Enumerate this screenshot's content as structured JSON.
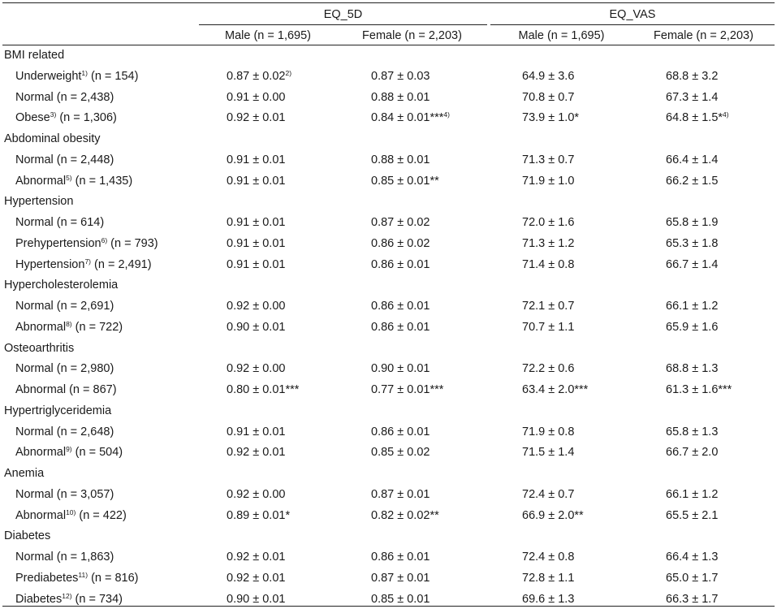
{
  "header": {
    "groups": [
      "EQ_5D",
      "EQ_VAS"
    ],
    "columns": [
      "Male (n = 1,695)",
      "Female (n = 2,203)",
      "Male (n = 1,695)",
      "Female (n = 2,203)"
    ]
  },
  "rows": [
    {
      "label": "BMI related",
      "sup": "",
      "n": "",
      "category": true,
      "values": [
        "",
        "",
        "",
        ""
      ],
      "sups": [
        "",
        "",
        "",
        ""
      ]
    },
    {
      "label": "Underweight",
      "sup": "1)",
      "n": " (n = 154)",
      "category": false,
      "values": [
        "0.87 ± 0.02",
        "0.87 ± 0.03",
        "64.9 ± 3.6",
        "68.8 ± 3.2"
      ],
      "sups": [
        "2)",
        "",
        "",
        ""
      ]
    },
    {
      "label": "Normal",
      "sup": "",
      "n": " (n = 2,438)",
      "category": false,
      "values": [
        "0.91 ± 0.00",
        "0.88 ± 0.01",
        "70.8 ± 0.7",
        "67.3 ± 1.4"
      ],
      "sups": [
        "",
        "",
        "",
        ""
      ]
    },
    {
      "label": "Obese",
      "sup": "3)",
      "n": " (n = 1,306)",
      "category": false,
      "values": [
        "0.92 ± 0.01",
        "0.84 ± 0.01***",
        "73.9 ± 1.0*",
        "64.8 ± 1.5*"
      ],
      "sups": [
        "",
        "4)",
        "",
        "4)"
      ]
    },
    {
      "label": "Abdominal obesity",
      "sup": "",
      "n": "",
      "category": true,
      "values": [
        "",
        "",
        "",
        ""
      ],
      "sups": [
        "",
        "",
        "",
        ""
      ]
    },
    {
      "label": "Normal",
      "sup": "",
      "n": " (n = 2,448)",
      "category": false,
      "values": [
        "0.91 ± 0.01",
        "0.88 ± 0.01",
        "71.3 ± 0.7",
        "66.4 ± 1.4"
      ],
      "sups": [
        "",
        "",
        "",
        ""
      ]
    },
    {
      "label": "Abnormal",
      "sup": "5)",
      "n": " (n = 1,435)",
      "category": false,
      "values": [
        "0.91 ± 0.01",
        "0.85 ± 0.01**",
        "71.9 ± 1.0",
        "66.2 ± 1.5"
      ],
      "sups": [
        "",
        "",
        "",
        ""
      ]
    },
    {
      "label": "Hypertension",
      "sup": "",
      "n": "",
      "category": true,
      "values": [
        "",
        "",
        "",
        ""
      ],
      "sups": [
        "",
        "",
        "",
        ""
      ]
    },
    {
      "label": "Normal",
      "sup": "",
      "n": " (n = 614)",
      "category": false,
      "values": [
        "0.91 ± 0.01",
        "0.87 ± 0.02",
        "72.0 ± 1.6",
        "65.8 ± 1.9"
      ],
      "sups": [
        "",
        "",
        "",
        ""
      ]
    },
    {
      "label": "Prehypertension",
      "sup": "6)",
      "n": " (n = 793)",
      "category": false,
      "values": [
        "0.91 ± 0.01",
        "0.86 ± 0.02",
        "71.3 ± 1.2",
        "65.3 ± 1.8"
      ],
      "sups": [
        "",
        "",
        "",
        ""
      ]
    },
    {
      "label": "Hypertension",
      "sup": "7)",
      "n": " (n = 2,491)",
      "category": false,
      "values": [
        "0.91 ± 0.01",
        "0.86 ± 0.01",
        "71.4 ± 0.8",
        "66.7 ± 1.4"
      ],
      "sups": [
        "",
        "",
        "",
        ""
      ]
    },
    {
      "label": "Hypercholesterolemia",
      "sup": "",
      "n": "",
      "category": true,
      "values": [
        "",
        "",
        "",
        ""
      ],
      "sups": [
        "",
        "",
        "",
        ""
      ]
    },
    {
      "label": "Normal",
      "sup": "",
      "n": " (n = 2,691)",
      "category": false,
      "values": [
        "0.92 ± 0.00",
        "0.86 ± 0.01",
        "72.1 ± 0.7",
        "66.1 ± 1.2"
      ],
      "sups": [
        "",
        "",
        "",
        ""
      ]
    },
    {
      "label": "Abnormal",
      "sup": "8)",
      "n": " (n = 722)",
      "category": false,
      "values": [
        "0.90 ± 0.01",
        "0.86 ± 0.01",
        "70.7 ± 1.1",
        "65.9 ± 1.6"
      ],
      "sups": [
        "",
        "",
        "",
        ""
      ]
    },
    {
      "label": "Osteoarthritis",
      "sup": "",
      "n": "",
      "category": true,
      "values": [
        "",
        "",
        "",
        ""
      ],
      "sups": [
        "",
        "",
        "",
        ""
      ]
    },
    {
      "label": "Normal",
      "sup": "",
      "n": " (n = 2,980)",
      "category": false,
      "values": [
        "0.92 ± 0.00",
        "0.90 ± 0.01",
        "72.2 ± 0.6",
        "68.8 ± 1.3"
      ],
      "sups": [
        "",
        "",
        "",
        ""
      ]
    },
    {
      "label": "Abnormal",
      "sup": "",
      "n": " (n = 867)",
      "category": false,
      "values": [
        "0.80 ± 0.01***",
        "0.77 ± 0.01***",
        "63.4 ± 2.0***",
        "61.3 ± 1.6***"
      ],
      "sups": [
        "",
        "",
        "",
        ""
      ]
    },
    {
      "label": "Hypertriglyceridemia",
      "sup": "",
      "n": "",
      "category": true,
      "values": [
        "",
        "",
        "",
        ""
      ],
      "sups": [
        "",
        "",
        "",
        ""
      ]
    },
    {
      "label": "Normal",
      "sup": "",
      "n": " (n = 2,648)",
      "category": false,
      "values": [
        "0.91 ± 0.01",
        "0.86 ± 0.01",
        "71.9 ± 0.8",
        "65.8 ± 1.3"
      ],
      "sups": [
        "",
        "",
        "",
        ""
      ]
    },
    {
      "label": "Abnormal",
      "sup": "9)",
      "n": " (n = 504)",
      "category": false,
      "values": [
        "0.92 ± 0.01",
        "0.85 ± 0.02",
        "71.5 ± 1.4",
        "66.7 ± 2.0"
      ],
      "sups": [
        "",
        "",
        "",
        ""
      ]
    },
    {
      "label": "Anemia",
      "sup": "",
      "n": "",
      "category": true,
      "values": [
        "",
        "",
        "",
        ""
      ],
      "sups": [
        "",
        "",
        "",
        ""
      ]
    },
    {
      "label": "Normal",
      "sup": "",
      "n": " (n = 3,057)",
      "category": false,
      "values": [
        "0.92 ± 0.00",
        "0.87 ± 0.01",
        "72.4 ± 0.7",
        "66.1 ± 1.2"
      ],
      "sups": [
        "",
        "",
        "",
        ""
      ]
    },
    {
      "label": "Abnormal",
      "sup": "10)",
      "n": " (n = 422)",
      "category": false,
      "values": [
        "0.89 ± 0.01*",
        "0.82 ± 0.02**",
        "66.9 ± 2.0**",
        "65.5 ± 2.1"
      ],
      "sups": [
        "",
        "",
        "",
        ""
      ]
    },
    {
      "label": "Diabetes",
      "sup": "",
      "n": "",
      "category": true,
      "values": [
        "",
        "",
        "",
        ""
      ],
      "sups": [
        "",
        "",
        "",
        ""
      ]
    },
    {
      "label": "Normal",
      "sup": "",
      "n": " (n = 1,863)",
      "category": false,
      "values": [
        "0.92 ± 0.01",
        "0.86 ± 0.01",
        "72.4 ± 0.8",
        "66.4 ± 1.3"
      ],
      "sups": [
        "",
        "",
        "",
        ""
      ]
    },
    {
      "label": "Prediabetes",
      "sup": "11)",
      "n": " (n = 816)",
      "category": false,
      "values": [
        "0.92 ± 0.01",
        "0.87 ± 0.01",
        "72.8 ± 1.1",
        "65.0 ± 1.7"
      ],
      "sups": [
        "",
        "",
        "",
        ""
      ]
    },
    {
      "label": "Diabetes",
      "sup": "12)",
      "n": " (n = 734)",
      "category": false,
      "values": [
        "0.90 ± 0.01",
        "0.85 ± 0.01",
        "69.6 ± 1.3",
        "66.3 ± 1.7"
      ],
      "sups": [
        "",
        "",
        "",
        ""
      ]
    }
  ]
}
